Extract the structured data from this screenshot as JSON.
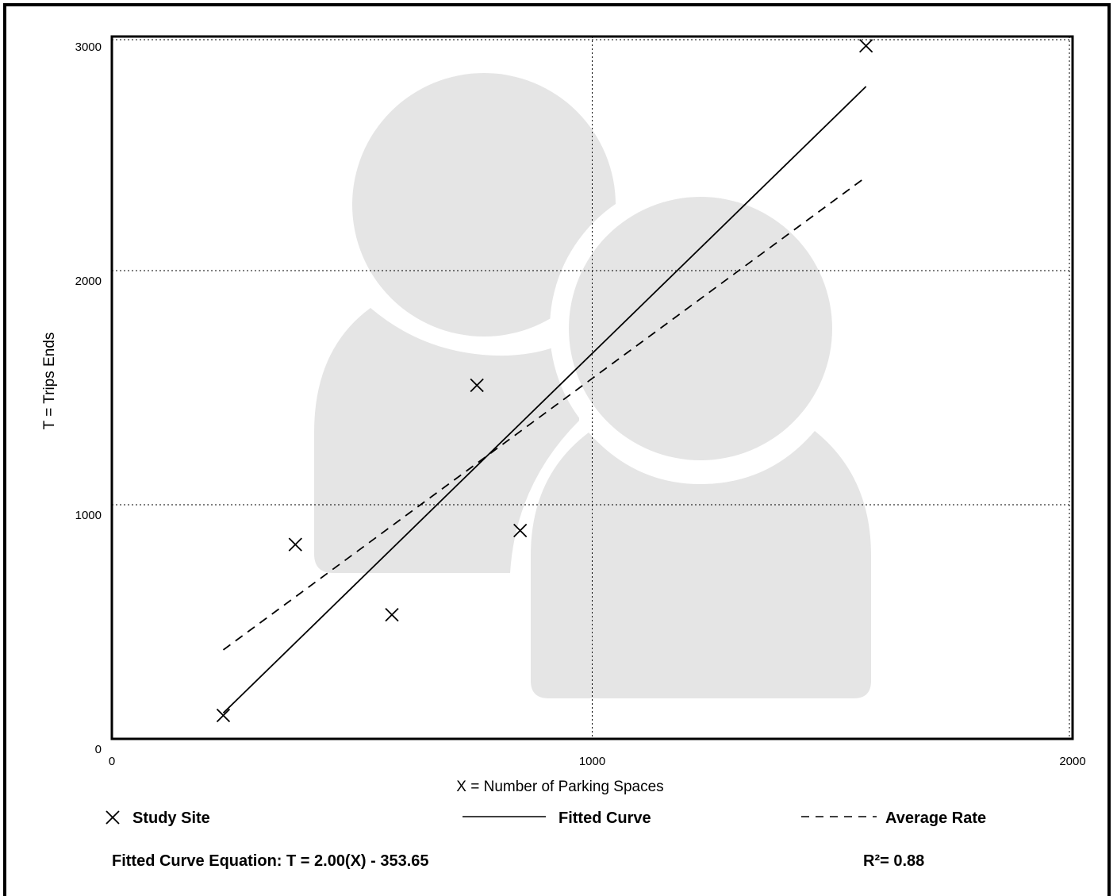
{
  "chart_data": {
    "type": "scatter",
    "xlabel": "X = Number of Parking Spaces",
    "ylabel": "T = Trips Ends",
    "xlim": [
      0,
      2000
    ],
    "ylim": [
      0,
      3000
    ],
    "x_ticks": [
      0,
      1000,
      2000
    ],
    "y_ticks": [
      0,
      1000,
      2000,
      3000
    ],
    "grid": true,
    "series": [
      {
        "name": "Study Site",
        "marker": "x",
        "points": [
          {
            "x": 232,
            "y": 100
          },
          {
            "x": 382,
            "y": 830
          },
          {
            "x": 583,
            "y": 530
          },
          {
            "x": 760,
            "y": 1510
          },
          {
            "x": 850,
            "y": 890
          },
          {
            "x": 1570,
            "y": 2960
          }
        ]
      },
      {
        "name": "Fitted Curve",
        "style": "solid",
        "slope": 2.0,
        "intercept": -353.65,
        "x_range": [
          232,
          1570
        ]
      },
      {
        "name": "Average Rate",
        "style": "dashed",
        "points": [
          {
            "x": 232,
            "y": 380
          },
          {
            "x": 1570,
            "y": 2400
          }
        ]
      }
    ],
    "legend": {
      "placement": "bottom",
      "items": [
        "Study Site",
        "Fitted Curve",
        "Average Rate"
      ]
    },
    "footer": {
      "equation": "Fitted Curve Equation: T = 2.00(X) - 353.65",
      "r_squared": "R²= 0.88"
    }
  },
  "colors": {
    "ink": "#000000",
    "background": "#ffffff",
    "watermark": "#e5e5e5"
  },
  "decor": {
    "watermark_icon": "users-icon"
  }
}
